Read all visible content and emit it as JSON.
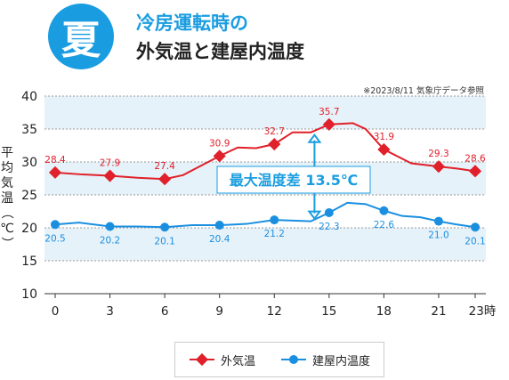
{
  "header": {
    "season_char": "夏",
    "title_line1": "冷房運転時の",
    "title_line2": "外気温と建屋内温度",
    "source_note": "※2023/8/11 気象庁データ参照"
  },
  "colors": {
    "outdoor": "#e0202a",
    "indoor": "#1a8fe0",
    "band": "#e6f2f9",
    "grid": "#9a9a9a",
    "accent": "#1a9de0"
  },
  "chart_data": {
    "type": "line",
    "ylabel": "平均気温（℃）",
    "ylim": [
      10,
      40
    ],
    "yticks": [
      "10",
      "15",
      "20",
      "25",
      "30",
      "35",
      "40"
    ],
    "xticks": [
      {
        "x": 0,
        "label": "0"
      },
      {
        "x": 3,
        "label": "3"
      },
      {
        "x": 6,
        "label": "6"
      },
      {
        "x": 9,
        "label": "9"
      },
      {
        "x": 12,
        "label": "12"
      },
      {
        "x": 15,
        "label": "15"
      },
      {
        "x": 18,
        "label": "18"
      },
      {
        "x": 21,
        "label": "21"
      },
      {
        "x": 23,
        "label": "23時"
      }
    ],
    "xlim": [
      0,
      23
    ],
    "series": [
      {
        "name": "外気温",
        "line": [
          [
            0,
            28.4
          ],
          [
            1.5,
            28.1
          ],
          [
            3,
            27.9
          ],
          [
            4.5,
            27.6
          ],
          [
            6,
            27.4
          ],
          [
            7,
            28.0
          ],
          [
            9,
            30.9
          ],
          [
            10,
            32.2
          ],
          [
            11,
            32.1
          ],
          [
            12,
            32.7
          ],
          [
            13,
            34.5
          ],
          [
            14,
            34.5
          ],
          [
            15,
            35.7
          ],
          [
            16.3,
            35.9
          ],
          [
            17,
            35.0
          ],
          [
            18,
            31.9
          ],
          [
            19.5,
            29.8
          ],
          [
            21,
            29.3
          ],
          [
            22,
            29.0
          ],
          [
            23,
            28.6
          ]
        ],
        "labeled_points": [
          {
            "x": 0,
            "y": 28.4,
            "label": "28.4"
          },
          {
            "x": 3,
            "y": 27.9,
            "label": "27.9"
          },
          {
            "x": 6,
            "y": 27.4,
            "label": "27.4"
          },
          {
            "x": 9,
            "y": 30.9,
            "label": "30.9"
          },
          {
            "x": 12,
            "y": 32.7,
            "label": "32.7"
          },
          {
            "x": 15,
            "y": 35.7,
            "label": "35.7"
          },
          {
            "x": 18,
            "y": 31.9,
            "label": "31.9"
          },
          {
            "x": 21,
            "y": 29.3,
            "label": "29.3"
          },
          {
            "x": 23,
            "y": 28.6,
            "label": "28.6"
          }
        ]
      },
      {
        "name": "建屋内温度",
        "line": [
          [
            0,
            20.5
          ],
          [
            1.3,
            20.8
          ],
          [
            3,
            20.2
          ],
          [
            4.5,
            20.2
          ],
          [
            6,
            20.1
          ],
          [
            7.5,
            20.4
          ],
          [
            9,
            20.4
          ],
          [
            10.5,
            20.6
          ],
          [
            12,
            21.2
          ],
          [
            14,
            21.0
          ],
          [
            15,
            22.3
          ],
          [
            16,
            23.8
          ],
          [
            17,
            23.6
          ],
          [
            18,
            22.6
          ],
          [
            19,
            21.8
          ],
          [
            20,
            21.6
          ],
          [
            21,
            21.0
          ],
          [
            22,
            20.5
          ],
          [
            23,
            20.1
          ]
        ],
        "labeled_points": [
          {
            "x": 0,
            "y": 20.5,
            "label": "20.5"
          },
          {
            "x": 3,
            "y": 20.2,
            "label": "20.2"
          },
          {
            "x": 6,
            "y": 20.1,
            "label": "20.1"
          },
          {
            "x": 9,
            "y": 20.4,
            "label": "20.4"
          },
          {
            "x": 12,
            "y": 21.2,
            "label": "21.2"
          },
          {
            "x": 15,
            "y": 22.3,
            "label": "22.3"
          },
          {
            "x": 18,
            "y": 22.6,
            "label": "22.6"
          },
          {
            "x": 21,
            "y": 21.0,
            "label": "21.0"
          },
          {
            "x": 23,
            "y": 20.1,
            "label": "20.1"
          }
        ]
      }
    ],
    "shaded_bands": [
      [
        15,
        20
      ],
      [
        25,
        30
      ],
      [
        35,
        40
      ]
    ],
    "annotation": {
      "text": "最大温度差 13.5℃",
      "x": 14.2,
      "y_top": 34.5,
      "y_bottom": 21.0
    },
    "legend": [
      "外気温",
      "建屋内温度"
    ],
    "legend_position": "bottom-center",
    "grid": true
  }
}
